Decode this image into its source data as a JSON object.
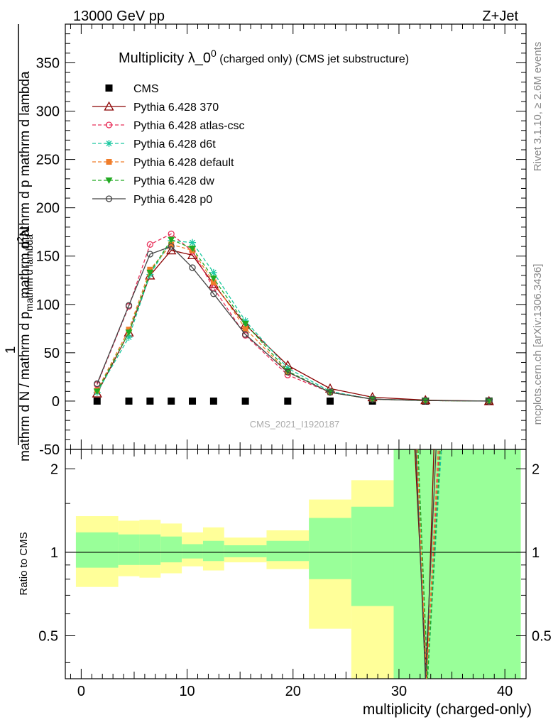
{
  "header": {
    "left": "13000 GeV pp",
    "right": "Z+Jet"
  },
  "side_labels": {
    "rivet": "Rivet 3.1.10, ≥ 2.6M events",
    "mcplots": "mcplots.cern.ch [arXiv:1306.3436]"
  },
  "chart_data": [
    {
      "type": "line",
      "title_main": "Multiplicity λ_0",
      "title_sup": "0",
      "title_sub": " (charged only) (CMS jet substructure)",
      "ylabel_lines": [
        "mathrm d N / mathrm d p_mathrm d lambda",
        "1",
        "mathrm d N / mathrm d p_mathrm d lambda",
        "mathrm d^{2}N"
      ],
      "ylabel_top_a": "mathrm d",
      "ylabel_top_b": "N",
      "ylabel_top_c": "mathrm d p",
      "ylabel_top_d": "mathrm d lambda",
      "ylabel_one": "1",
      "ylabel_bottom": "mathrm d N / mathrm d p",
      "ylabel_bottom_b": "mathrm d lambda",
      "watermark": "CMS_2021_I1920187",
      "xlim": [
        -1.5,
        42
      ],
      "ylim": [
        -50,
        390
      ],
      "yticks": [
        -50,
        0,
        50,
        100,
        150,
        200,
        250,
        300,
        350
      ],
      "legend_position": "top-left",
      "series": [
        {
          "name": "CMS",
          "color": "#000000",
          "marker": "square",
          "dashed": false,
          "x": [
            1.5,
            4.5,
            6.5,
            8.5,
            10.5,
            12.5,
            15.5,
            19.5,
            23.5,
            27.5,
            32.5,
            38.5
          ],
          "y": [
            0,
            0,
            0,
            0,
            0,
            0,
            0,
            0,
            0,
            0,
            0,
            0
          ]
        },
        {
          "name": "Pythia 6.428 370",
          "color": "#8b0000",
          "marker": "triangle-open",
          "dashed": false,
          "x": [
            1.5,
            4.5,
            6.5,
            8.5,
            10.5,
            12.5,
            15.5,
            19.5,
            23.5,
            27.5,
            32.5,
            38.5
          ],
          "y": [
            8,
            71,
            130,
            156,
            151,
            121,
            79,
            37,
            13,
            4,
            1,
            0
          ]
        },
        {
          "name": "Pythia 6.428 atlas-csc",
          "color": "#e8305a",
          "marker": "circle-open",
          "dashed": true,
          "x": [
            1.5,
            4.5,
            6.5,
            8.5,
            10.5,
            12.5,
            15.5,
            19.5,
            23.5,
            27.5,
            32.5,
            38.5
          ],
          "y": [
            17,
            98,
            162,
            173,
            155,
            117,
            68,
            27,
            9,
            2,
            0.5,
            0
          ]
        },
        {
          "name": "Pythia 6.428 d6t",
          "color": "#1ac8a0",
          "marker": "star",
          "dashed": true,
          "x": [
            1.5,
            4.5,
            6.5,
            8.5,
            10.5,
            12.5,
            15.5,
            19.5,
            23.5,
            27.5,
            32.5,
            38.5
          ],
          "y": [
            9,
            66,
            131,
            166,
            164,
            133,
            83,
            34,
            10,
            2,
            0.5,
            0
          ]
        },
        {
          "name": "Pythia 6.428 default",
          "color": "#f07d2a",
          "marker": "square-filled",
          "dashed": true,
          "x": [
            1.5,
            4.5,
            6.5,
            8.5,
            10.5,
            12.5,
            15.5,
            19.5,
            23.5,
            27.5,
            32.5,
            38.5
          ],
          "y": [
            11,
            74,
            136,
            162,
            156,
            123,
            75,
            30,
            9,
            2,
            0.5,
            0
          ]
        },
        {
          "name": "Pythia 6.428 dw",
          "color": "#22aa22",
          "marker": "triangle-down-filled",
          "dashed": true,
          "x": [
            1.5,
            4.5,
            6.5,
            8.5,
            10.5,
            12.5,
            15.5,
            19.5,
            23.5,
            27.5,
            32.5,
            38.5
          ],
          "y": [
            10,
            71,
            133,
            167,
            158,
            127,
            80,
            31,
            9,
            2,
            0.5,
            0
          ]
        },
        {
          "name": "Pythia 6.428 p0",
          "color": "#444444",
          "marker": "circle-open",
          "dashed": false,
          "x": [
            1.5,
            4.5,
            6.5,
            8.5,
            10.5,
            12.5,
            15.5,
            19.5,
            23.5,
            27.5,
            32.5,
            38.5
          ],
          "y": [
            18,
            99,
            152,
            160,
            138,
            111,
            69,
            30,
            9,
            2,
            0.5,
            0
          ]
        }
      ]
    },
    {
      "type": "area",
      "ylabel": "Ratio to CMS",
      "xlabel": "multiplicity (charged-only)",
      "xlim": [
        -1.5,
        42
      ],
      "ylim": [
        0.35,
        2.35
      ],
      "yticks": [
        0.5,
        1,
        2
      ],
      "xticks": [
        0,
        10,
        20,
        30,
        40
      ],
      "bins": [
        {
          "x": [
            -0.5,
            3.5
          ],
          "yellow": [
            0.75,
            1.35
          ],
          "green": [
            0.88,
            1.18
          ]
        },
        {
          "x": [
            3.5,
            5.5
          ],
          "yellow": [
            0.82,
            1.3
          ],
          "green": [
            0.9,
            1.16
          ]
        },
        {
          "x": [
            5.5,
            7.5
          ],
          "yellow": [
            0.81,
            1.31
          ],
          "green": [
            0.9,
            1.16
          ]
        },
        {
          "x": [
            7.5,
            9.5
          ],
          "yellow": [
            0.84,
            1.27
          ],
          "green": [
            0.92,
            1.14
          ]
        },
        {
          "x": [
            9.5,
            11.5
          ],
          "yellow": [
            0.89,
            1.18
          ],
          "green": [
            0.95,
            1.07
          ]
        },
        {
          "x": [
            11.5,
            13.5
          ],
          "yellow": [
            0.86,
            1.23
          ],
          "green": [
            0.93,
            1.1
          ]
        },
        {
          "x": [
            13.5,
            17.5
          ],
          "yellow": [
            0.92,
            1.13
          ],
          "green": [
            0.96,
            1.06
          ]
        },
        {
          "x": [
            17.5,
            21.5
          ],
          "yellow": [
            0.87,
            1.2
          ],
          "green": [
            0.93,
            1.1
          ]
        },
        {
          "x": [
            21.5,
            25.5
          ],
          "yellow": [
            0.53,
            1.55
          ],
          "green": [
            0.8,
            1.33
          ]
        },
        {
          "x": [
            25.5,
            29.5
          ],
          "yellow": [
            0.35,
            1.82
          ],
          "green": [
            0.64,
            1.46
          ]
        },
        {
          "x": [
            29.5,
            41.5
          ],
          "yellow": [
            0.35,
            2.35
          ],
          "green": [
            0.35,
            2.35
          ]
        }
      ],
      "reference_line": 1,
      "series": [
        {
          "color": "#8b0000",
          "dashed": false,
          "x": [
            31.5,
            32.6,
            33.3
          ],
          "y": [
            2.35,
            0.35,
            2.35
          ]
        },
        {
          "color": "#e8305a",
          "dashed": true,
          "x": [
            31.7,
            32.6,
            33.8
          ],
          "y": [
            2.35,
            0.35,
            2.35
          ]
        },
        {
          "color": "#1ac8a0",
          "dashed": true,
          "x": [
            31.8,
            32.7,
            34.0
          ],
          "y": [
            2.35,
            0.35,
            2.35
          ]
        },
        {
          "color": "#f07d2a",
          "dashed": true,
          "x": [
            31.7,
            32.6,
            33.7
          ],
          "y": [
            2.35,
            0.35,
            2.35
          ]
        },
        {
          "color": "#22aa22",
          "dashed": true,
          "x": [
            31.8,
            32.7,
            33.9
          ],
          "y": [
            2.35,
            0.35,
            2.35
          ]
        },
        {
          "color": "#444444",
          "dashed": false,
          "x": [
            31.6,
            32.5,
            33.5
          ],
          "y": [
            2.35,
            0.35,
            2.35
          ]
        }
      ]
    }
  ]
}
